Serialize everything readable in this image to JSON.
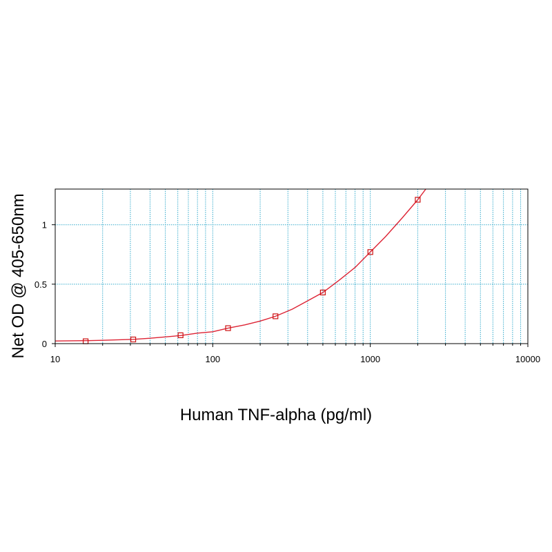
{
  "chart_data": {
    "type": "scatter",
    "title": "",
    "xlabel": "Human TNF-alpha (pg/ml)",
    "ylabel": "Net OD @ 405-650nm",
    "x_scale": "log",
    "xlim": [
      10,
      10000
    ],
    "ylim": [
      0,
      1.3
    ],
    "x_ticks": [
      10,
      100,
      1000,
      10000
    ],
    "x_tick_labels": [
      "10",
      "100",
      "1000",
      "10000"
    ],
    "y_ticks": [
      0,
      0.5,
      1
    ],
    "y_tick_labels": [
      "0",
      "0.5",
      "1"
    ],
    "grid": true,
    "legend": "none",
    "series": [
      {
        "points": [
          {
            "x": 15.6,
            "y": 0.02
          },
          {
            "x": 31.3,
            "y": 0.035
          },
          {
            "x": 62.5,
            "y": 0.07
          },
          {
            "x": 125,
            "y": 0.13
          },
          {
            "x": 250,
            "y": 0.23
          },
          {
            "x": 500,
            "y": 0.43
          },
          {
            "x": 1000,
            "y": 0.77
          },
          {
            "x": 2000,
            "y": 1.21
          }
        ],
        "fit_curve": [
          {
            "x": 10,
            "y": 0.022
          },
          {
            "x": 15.6,
            "y": 0.025
          },
          {
            "x": 20,
            "y": 0.028
          },
          {
            "x": 31.3,
            "y": 0.036
          },
          {
            "x": 40,
            "y": 0.045
          },
          {
            "x": 62.5,
            "y": 0.068
          },
          {
            "x": 80,
            "y": 0.088
          },
          {
            "x": 100,
            "y": 0.1
          },
          {
            "x": 125,
            "y": 0.13
          },
          {
            "x": 160,
            "y": 0.158
          },
          {
            "x": 200,
            "y": 0.19
          },
          {
            "x": 250,
            "y": 0.23
          },
          {
            "x": 320,
            "y": 0.29
          },
          {
            "x": 400,
            "y": 0.36
          },
          {
            "x": 500,
            "y": 0.43
          },
          {
            "x": 630,
            "y": 0.53
          },
          {
            "x": 800,
            "y": 0.64
          },
          {
            "x": 1000,
            "y": 0.77
          },
          {
            "x": 1250,
            "y": 0.9
          },
          {
            "x": 1600,
            "y": 1.06
          },
          {
            "x": 2000,
            "y": 1.21
          },
          {
            "x": 2250,
            "y": 1.3
          }
        ]
      }
    ],
    "colors": {
      "curve": "#dd2233",
      "marker": "#cc1111",
      "grid": "#33aacc",
      "axis": "#000000"
    }
  }
}
